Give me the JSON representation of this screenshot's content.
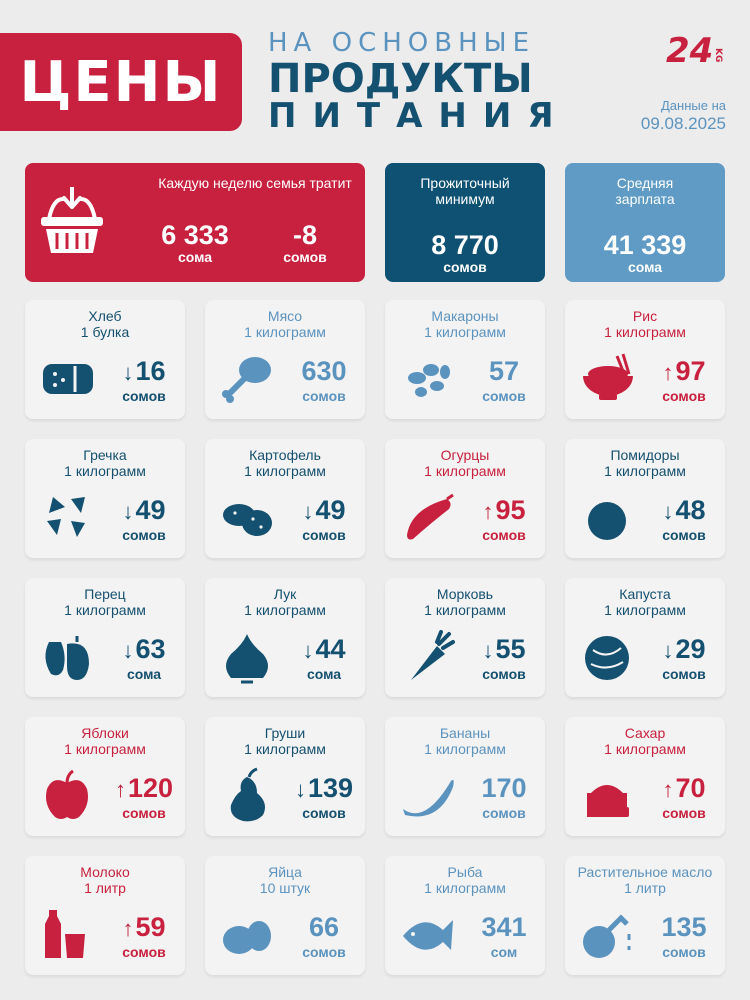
{
  "header": {
    "badge": "ЦЕНЫ",
    "line1": "НА ОСНОВНЫЕ",
    "line2": "ПРОДУКТЫ",
    "line3": "ПИТАНИЯ",
    "logo_text": "24",
    "logo_sub": "KG",
    "date_label": "Данные на",
    "date_value": "09.08.2025"
  },
  "colors": {
    "red": "#c8213f",
    "dark": "#14506f",
    "light": "#5b93bf",
    "card_bg": "#f3f3f3"
  },
  "summary": {
    "weekly_title": "Каждую неделю семья тратит",
    "weekly_amount": "6 333",
    "weekly_amount_unit": "сома",
    "weekly_change": "-8",
    "weekly_change_unit": "сомов",
    "min_title": "Прожиточный минимум",
    "min_value": "8 770",
    "min_unit": "сомов",
    "salary_title": "Средняя зарплата",
    "salary_value": "41 339",
    "salary_unit": "сома"
  },
  "products": [
    {
      "name": "Хлеб",
      "qty": "1 булка",
      "value": "16",
      "unit": "сомов",
      "trend": "down",
      "color": "dark",
      "icon": "bread-icon"
    },
    {
      "name": "Мясо",
      "qty": "1 килограмм",
      "value": "630",
      "unit": "сомов",
      "trend": "none",
      "color": "light",
      "icon": "meat-icon"
    },
    {
      "name": "Макароны",
      "qty": "1 килограмм",
      "value": "57",
      "unit": "сомов",
      "trend": "none",
      "color": "light",
      "icon": "pasta-icon"
    },
    {
      "name": "Рис",
      "qty": "1 килограмм",
      "value": "97",
      "unit": "сомов",
      "trend": "up",
      "color": "red",
      "icon": "rice-bowl-icon"
    },
    {
      "name": "Гречка",
      "qty": "1 килограмм",
      "value": "49",
      "unit": "сомов",
      "trend": "down",
      "color": "dark",
      "icon": "buckwheat-icon"
    },
    {
      "name": "Картофель",
      "qty": "1 килограмм",
      "value": "49",
      "unit": "сомов",
      "trend": "down",
      "color": "dark",
      "icon": "potato-icon"
    },
    {
      "name": "Огурцы",
      "qty": "1 килограмм",
      "value": "95",
      "unit": "сомов",
      "trend": "up",
      "color": "red",
      "icon": "cucumber-icon"
    },
    {
      "name": "Помидоры",
      "qty": "1 килограмм",
      "value": "48",
      "unit": "сомов",
      "trend": "down",
      "color": "dark",
      "icon": "tomato-icon"
    },
    {
      "name": "Перец",
      "qty": "1 килограмм",
      "value": "63",
      "unit": "сома",
      "trend": "down",
      "color": "dark",
      "icon": "pepper-icon"
    },
    {
      "name": "Лук",
      "qty": "1 килограмм",
      "value": "44",
      "unit": "сома",
      "trend": "down",
      "color": "dark",
      "icon": "onion-icon"
    },
    {
      "name": "Морковь",
      "qty": "1 килограмм",
      "value": "55",
      "unit": "сомов",
      "trend": "down",
      "color": "dark",
      "icon": "carrot-icon"
    },
    {
      "name": "Капуста",
      "qty": "1 килограмм",
      "value": "29",
      "unit": "сомов",
      "trend": "down",
      "color": "dark",
      "icon": "cabbage-icon"
    },
    {
      "name": "Яблоки",
      "qty": "1 килограмм",
      "value": "120",
      "unit": "сомов",
      "trend": "up",
      "color": "red",
      "icon": "apple-icon"
    },
    {
      "name": "Груши",
      "qty": "1 килограмм",
      "value": "139",
      "unit": "сомов",
      "trend": "down",
      "color": "dark",
      "icon": "pear-icon"
    },
    {
      "name": "Бананы",
      "qty": "1 килограмм",
      "value": "170",
      "unit": "сомов",
      "trend": "none",
      "color": "light",
      "icon": "banana-icon"
    },
    {
      "name": "Сахар",
      "qty": "1 килограмм",
      "value": "70",
      "unit": "сомов",
      "trend": "up",
      "color": "red",
      "icon": "sugar-icon"
    },
    {
      "name": "Молоко",
      "qty": "1 литр",
      "value": "59",
      "unit": "сомов",
      "trend": "up",
      "color": "red",
      "icon": "milk-icon"
    },
    {
      "name": "Яйца",
      "qty": "10 штук",
      "value": "66",
      "unit": "сомов",
      "trend": "none",
      "color": "light",
      "icon": "eggs-icon"
    },
    {
      "name": "Рыба",
      "qty": "1 килограмм",
      "value": "341",
      "unit": "сом",
      "trend": "none",
      "color": "light",
      "icon": "fish-icon"
    },
    {
      "name": "Растительное масло",
      "qty": "1 литр",
      "value": "135",
      "unit": "сомов",
      "trend": "none",
      "color": "light",
      "icon": "oil-icon"
    }
  ]
}
